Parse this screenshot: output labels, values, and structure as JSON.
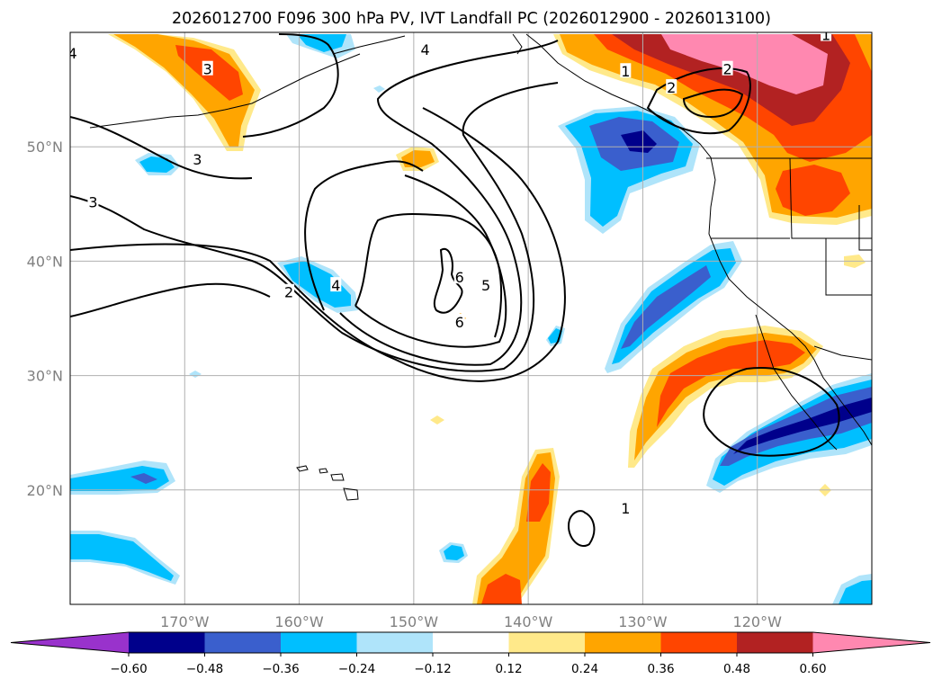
{
  "title": "2026012700 F096 300 hPa PV, IVT Landfall PC (2026012900 - 2026013100)",
  "map": {
    "projection": "PlateCarree",
    "lon_range": [
      -180,
      -110
    ],
    "lat_range": [
      10,
      60
    ],
    "lat_ticks": [
      {
        "value": 50,
        "label": "50°N"
      },
      {
        "value": 40,
        "label": "40°N"
      },
      {
        "value": 30,
        "label": "30°N"
      },
      {
        "value": 20,
        "label": "20°N"
      }
    ],
    "lon_ticks": [
      {
        "value": -170,
        "label": "170°W"
      },
      {
        "value": -160,
        "label": "160°W"
      },
      {
        "value": -150,
        "label": "150°W"
      },
      {
        "value": -140,
        "label": "140°W"
      },
      {
        "value": -130,
        "label": "130°W"
      },
      {
        "value": -120,
        "label": "120°W"
      }
    ],
    "pv_contour_labels": [
      "1",
      "2",
      "3",
      "4",
      "5",
      "6"
    ],
    "contour_label_positions": [
      {
        "text": "3",
        "lon": -168.9,
        "lat": 48.9
      },
      {
        "text": "3",
        "lon": -178.0,
        "lat": 45.2
      },
      {
        "text": "4",
        "lon": -179.8,
        "lat": 58.2
      },
      {
        "text": "4",
        "lon": -149.0,
        "lat": 58.5
      },
      {
        "text": "4",
        "lon": -156.8,
        "lat": 37.9
      },
      {
        "text": "3",
        "lon": -168.0,
        "lat": 56.8
      },
      {
        "text": "2",
        "lon": -160.9,
        "lat": 37.3
      },
      {
        "text": "6",
        "lon": -146.0,
        "lat": 38.6
      },
      {
        "text": "5",
        "lon": -143.7,
        "lat": 37.9
      },
      {
        "text": "6",
        "lon": -146.0,
        "lat": 34.7
      },
      {
        "text": "1",
        "lon": -131.5,
        "lat": 56.6
      },
      {
        "text": "2",
        "lon": -122.6,
        "lat": 56.8
      },
      {
        "text": "2",
        "lon": -127.5,
        "lat": 55.2
      },
      {
        "text": "1",
        "lon": -114.0,
        "lat": 59.8
      },
      {
        "text": "1",
        "lon": -131.5,
        "lat": 18.4
      }
    ]
  },
  "colorbar": {
    "ticks": [
      "−0.60",
      "−0.48",
      "−0.36",
      "−0.24",
      "−0.12",
      "0.12",
      "0.24",
      "0.36",
      "0.48",
      "0.60"
    ],
    "colors": [
      "#9932cc",
      "#00008b",
      "#3a5fcd",
      "#00bfff",
      "#afe4fa",
      "#ffffff",
      "#ffe98a",
      "#ffa500",
      "#ff4500",
      "#b22222",
      "#ff88b0"
    ],
    "extend": "both"
  },
  "colors": {
    "coast": "#000000",
    "grid": "#b0b0b0",
    "contour": "#000000"
  }
}
